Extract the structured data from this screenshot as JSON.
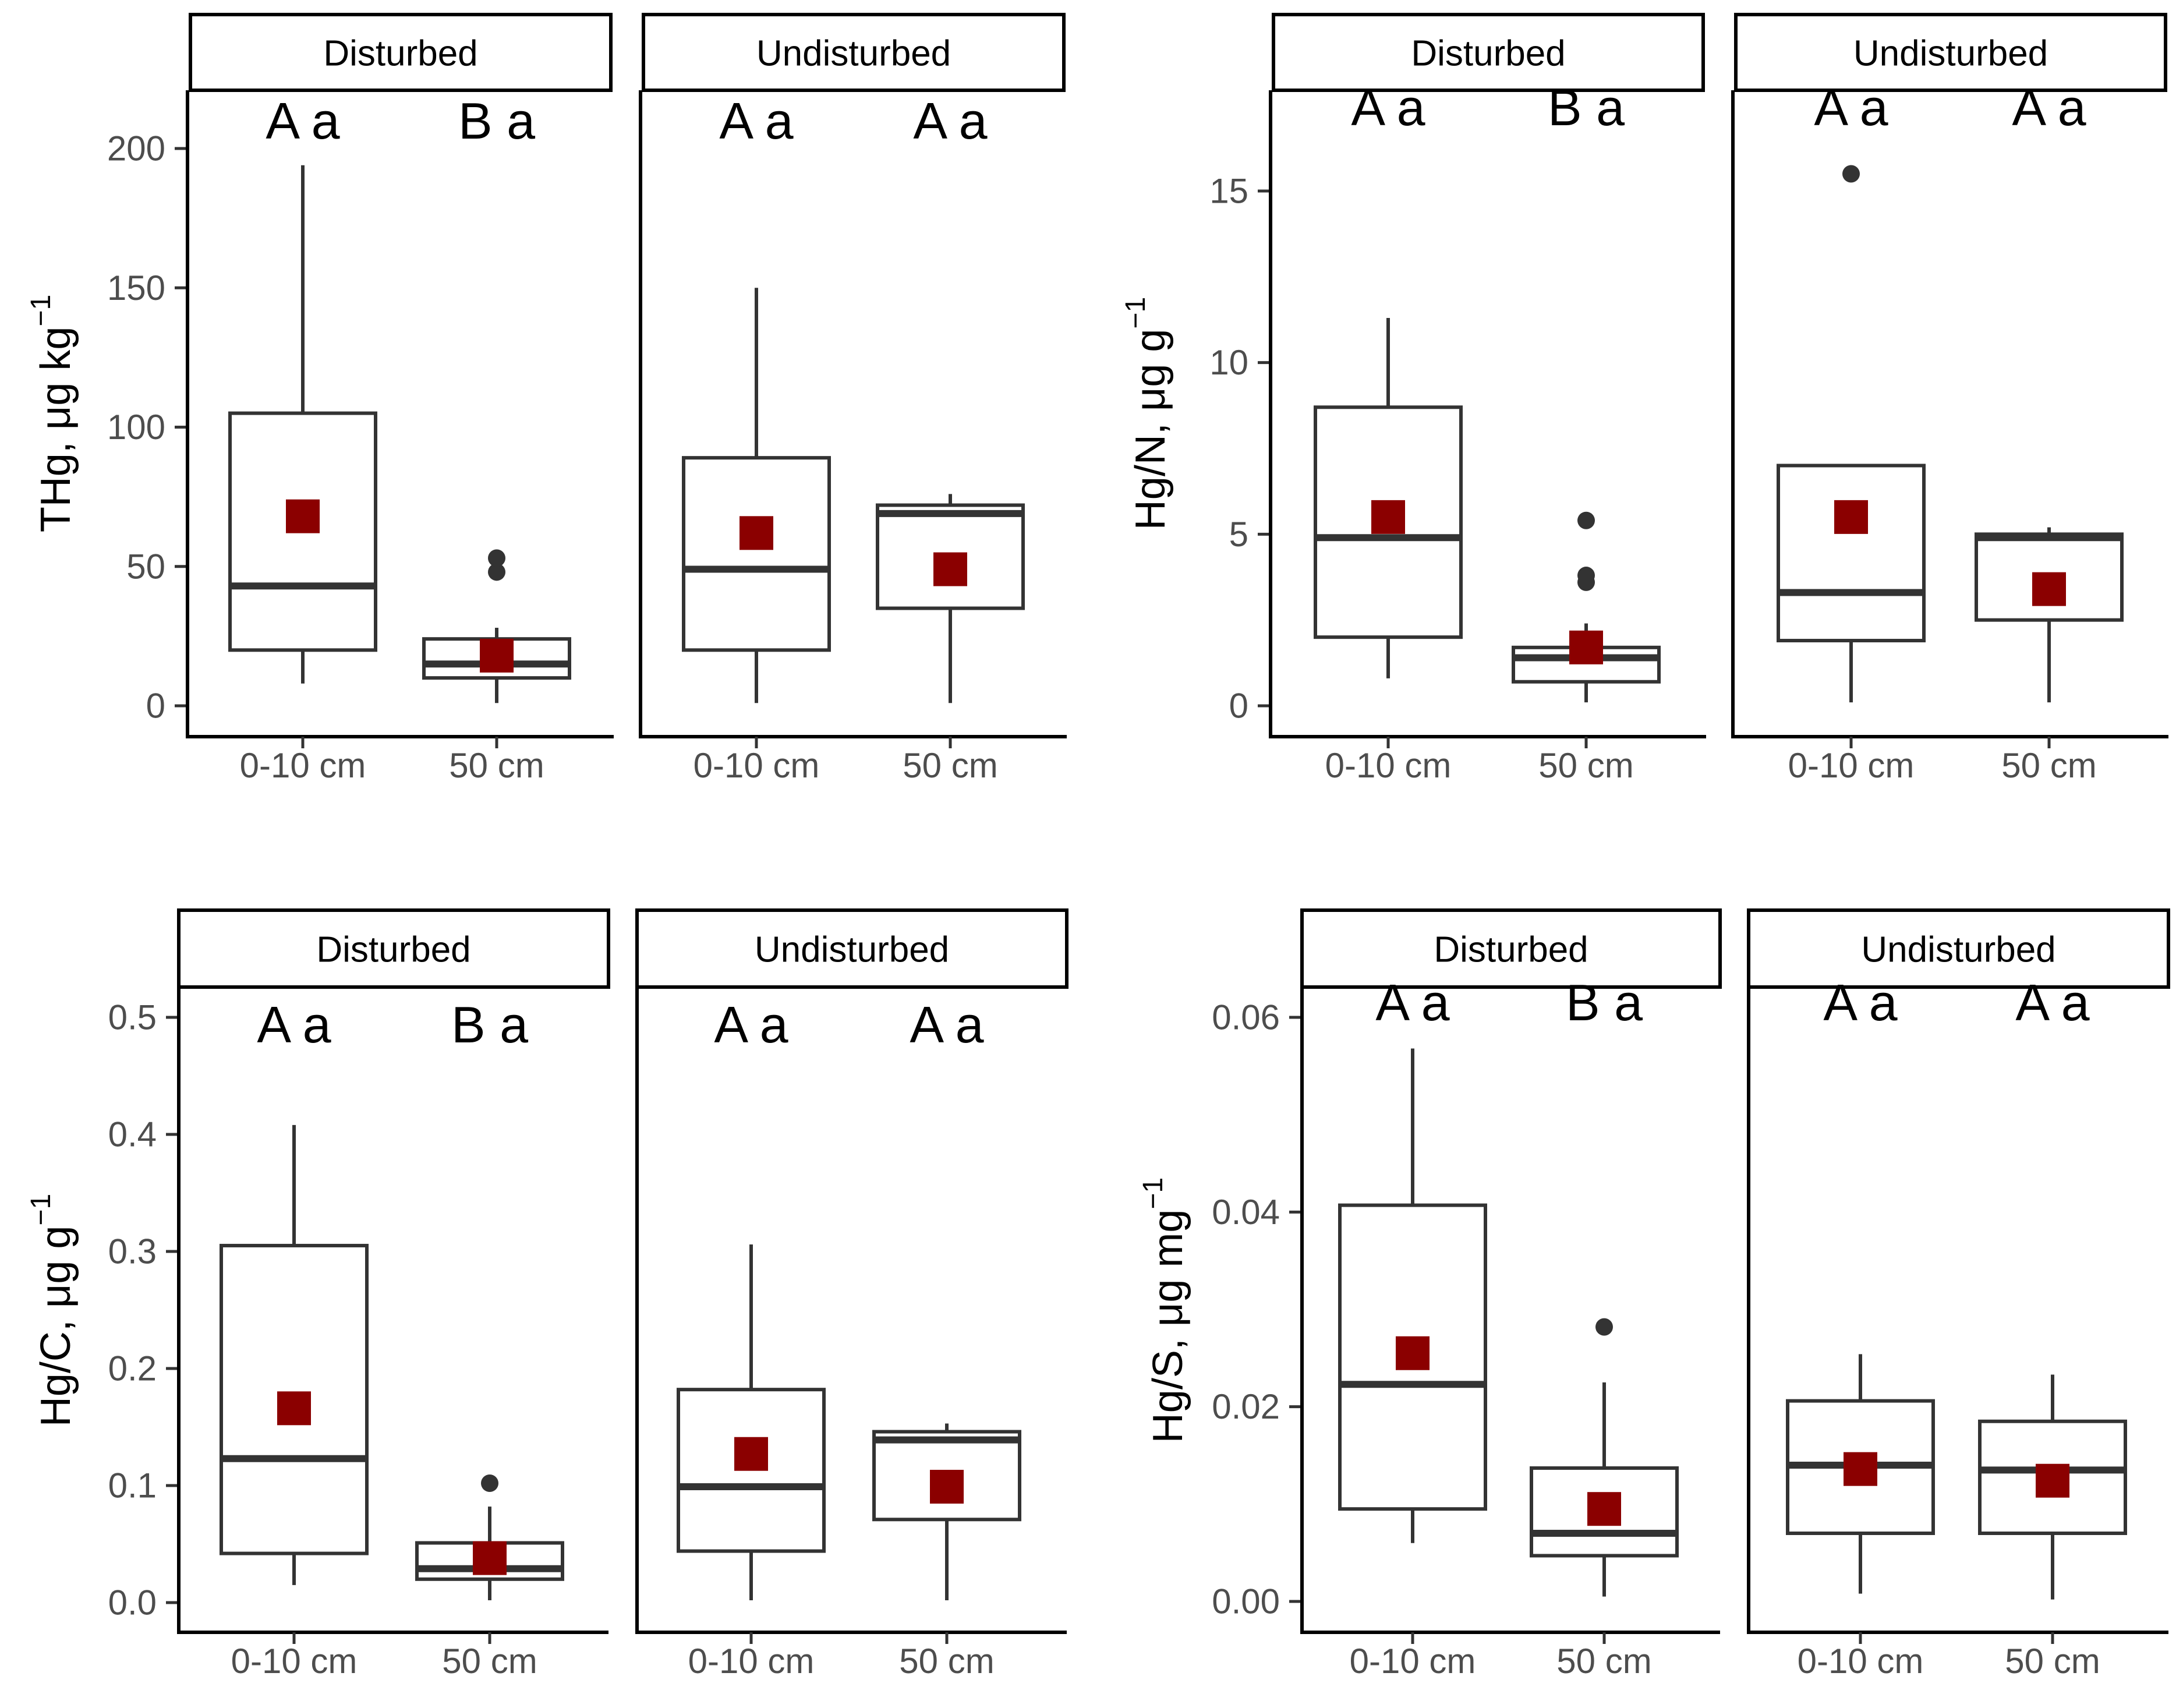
{
  "chart_data": [
    {
      "type": "box",
      "ylabel": "THg, μg kg",
      "ylabel_sup": "−1",
      "ylim": [
        -10,
        220
      ],
      "y_ticks": [
        0,
        50,
        100,
        150,
        200
      ],
      "y_tick_labels": [
        "0",
        "50",
        "100",
        "150",
        "200"
      ],
      "panels": [
        {
          "strip": "Disturbed",
          "groups": [
            {
              "category": "0-10 cm",
              "letters": "A a",
              "whisker_low": 8,
              "q1": 20,
              "median": 43,
              "q3": 105,
              "whisker_high": 194,
              "mean": 68,
              "outliers": []
            },
            {
              "category": "50 cm",
              "letters": "B a",
              "whisker_low": 1,
              "q1": 10,
              "median": 15,
              "q3": 24,
              "whisker_high": 28,
              "mean": 18,
              "outliers": [
                48,
                53
              ]
            }
          ]
        },
        {
          "strip": "Undisturbed",
          "groups": [
            {
              "category": "0-10 cm",
              "letters": "A a",
              "whisker_low": 1,
              "q1": 20,
              "median": 49,
              "q3": 89,
              "whisker_high": 150,
              "mean": 62,
              "outliers": []
            },
            {
              "category": "50 cm",
              "letters": "A a",
              "whisker_low": 1,
              "q1": 35,
              "median": 69,
              "q3": 72,
              "whisker_high": 76,
              "mean": 49,
              "outliers": []
            }
          ]
        }
      ]
    },
    {
      "type": "box",
      "ylabel": "Hg/N, μg g",
      "ylabel_sup": "−1",
      "ylim": [
        -0.6,
        17.7
      ],
      "y_ticks": [
        0,
        5,
        10,
        15
      ],
      "y_tick_labels": [
        "0",
        "5",
        "10",
        "15"
      ],
      "panels": [
        {
          "strip": "Disturbed",
          "groups": [
            {
              "category": "0-10 cm",
              "letters": "A a",
              "whisker_low": 0.8,
              "q1": 2.0,
              "median": 4.9,
              "q3": 8.7,
              "whisker_high": 11.3,
              "mean": 5.5,
              "outliers": []
            },
            {
              "category": "50 cm",
              "letters": "B a",
              "whisker_low": 0.1,
              "q1": 0.7,
              "median": 1.4,
              "q3": 1.7,
              "whisker_high": 2.4,
              "mean": 1.7,
              "outliers": [
                3.6,
                3.8,
                5.4
              ]
            }
          ]
        },
        {
          "strip": "Undisturbed",
          "groups": [
            {
              "category": "0-10 cm",
              "letters": "A a",
              "whisker_low": 0.1,
              "q1": 1.9,
              "median": 3.3,
              "q3": 7.0,
              "whisker_high": 7.0,
              "mean": 5.5,
              "outliers": [
                15.5
              ]
            },
            {
              "category": "50 cm",
              "letters": "A a",
              "whisker_low": 0.1,
              "q1": 2.5,
              "median": 4.9,
              "q3": 5.0,
              "whisker_high": 5.2,
              "mean": 3.4,
              "outliers": []
            }
          ]
        }
      ]
    },
    {
      "type": "box",
      "ylabel": "Hg/C, μg g",
      "ylabel_sup": "−1",
      "ylim": [
        -0.025,
        0.53
      ],
      "y_ticks": [
        0.0,
        0.1,
        0.2,
        0.3,
        0.4,
        0.5
      ],
      "y_tick_labels": [
        "0.0",
        "0.1",
        "0.2",
        "0.3",
        "0.4",
        "0.5"
      ],
      "panels": [
        {
          "strip": "Disturbed",
          "groups": [
            {
              "category": "0-10 cm",
              "letters": "A a",
              "whisker_low": 0.015,
              "q1": 0.042,
              "median": 0.123,
              "q3": 0.305,
              "whisker_high": 0.408,
              "mean": 0.166,
              "outliers": []
            },
            {
              "category": "50 cm",
              "letters": "B a",
              "whisker_low": 0.002,
              "q1": 0.02,
              "median": 0.029,
              "q3": 0.051,
              "whisker_high": 0.082,
              "mean": 0.038,
              "outliers": [
                0.102
              ]
            }
          ]
        },
        {
          "strip": "Undisturbed",
          "groups": [
            {
              "category": "0-10 cm",
              "letters": "A a",
              "whisker_low": 0.002,
              "q1": 0.044,
              "median": 0.099,
              "q3": 0.182,
              "whisker_high": 0.306,
              "mean": 0.127,
              "outliers": []
            },
            {
              "category": "50 cm",
              "letters": "A a",
              "whisker_low": 0.002,
              "q1": 0.071,
              "median": 0.139,
              "q3": 0.146,
              "whisker_high": 0.153,
              "mean": 0.099,
              "outliers": []
            }
          ]
        }
      ]
    },
    {
      "type": "box",
      "ylabel": "Hg/S, μg mg",
      "ylabel_sup": "−1",
      "ylim": [
        -0.0025,
        0.0645
      ],
      "y_ticks": [
        0.0,
        0.02,
        0.04,
        0.06
      ],
      "y_tick_labels": [
        "0.00",
        "0.02",
        "0.04",
        "0.06"
      ],
      "panels": [
        {
          "strip": "Disturbed",
          "groups": [
            {
              "category": "0-10 cm",
              "letters": "A a",
              "whisker_low": 0.006,
              "q1": 0.0095,
              "median": 0.0223,
              "q3": 0.0407,
              "whisker_high": 0.0568,
              "mean": 0.0255,
              "outliers": []
            },
            {
              "category": "50 cm",
              "letters": "B a",
              "whisker_low": 0.0005,
              "q1": 0.0047,
              "median": 0.007,
              "q3": 0.0137,
              "whisker_high": 0.0225,
              "mean": 0.0095,
              "outliers": [
                0.0282
              ]
            }
          ]
        },
        {
          "strip": "Undisturbed",
          "groups": [
            {
              "category": "0-10 cm",
              "letters": "A a",
              "whisker_low": 0.0008,
              "q1": 0.007,
              "median": 0.014,
              "q3": 0.0206,
              "whisker_high": 0.0254,
              "mean": 0.0136,
              "outliers": []
            },
            {
              "category": "50 cm",
              "letters": "A a",
              "whisker_low": 0.0002,
              "q1": 0.007,
              "median": 0.0135,
              "q3": 0.0185,
              "whisker_high": 0.0233,
              "mean": 0.0124,
              "outliers": []
            }
          ]
        }
      ]
    }
  ]
}
